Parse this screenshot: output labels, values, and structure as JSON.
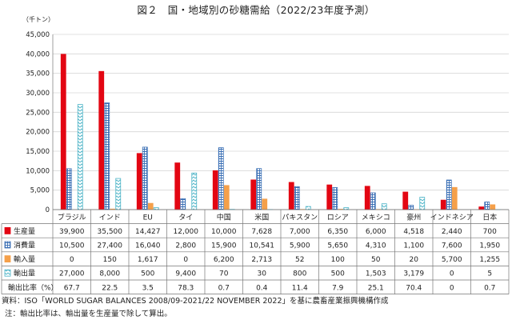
{
  "title": "図２　国・地域別の砂糖需給（2022/23年度予測）",
  "unit_label": "（千トン）",
  "source": "資料：ISO「WORLD SUGAR BALANCES 2008/09-2021/22 NOVEMBER 2022」を基に農畜産業振興機構作成",
  "note": "注：輸出比率は、輸出量を生産量で除して算出。",
  "colors": {
    "production": "#e30613",
    "consumption": "#3a6fb5",
    "import": "#f5a04a",
    "export": "#4cb3c7"
  },
  "chart_data": {
    "type": "bar",
    "title": "図２　国・地域別の砂糖需給（2022/23年度予測）",
    "ylabel": "（千トン）",
    "ylim": [
      0,
      45000
    ],
    "yticks": [
      "0",
      "5,000",
      "10,000",
      "15,000",
      "20,000",
      "25,000",
      "30,000",
      "35,000",
      "40,000",
      "45,000"
    ],
    "grid": true,
    "legend": "table-left",
    "categories": [
      "ブラジル",
      "インド",
      "EU",
      "タイ",
      "中国",
      "米国",
      "パキスタン",
      "ロシア",
      "メキシコ",
      "豪州",
      "インドネシア",
      "日本"
    ],
    "series": [
      {
        "name": "生産量",
        "values": [
          39900,
          35500,
          14427,
          12000,
          10000,
          7628,
          7000,
          6350,
          6000,
          4518,
          2440,
          700
        ]
      },
      {
        "name": "消費量",
        "values": [
          10500,
          27400,
          16040,
          2800,
          15900,
          10541,
          5900,
          5650,
          4310,
          1100,
          7600,
          1950
        ]
      },
      {
        "name": "輸入量",
        "values": [
          0,
          150,
          1617,
          0,
          6200,
          2713,
          52,
          100,
          50,
          20,
          5700,
          1255
        ]
      },
      {
        "name": "輸出量",
        "values": [
          27000,
          8000,
          500,
          9400,
          70,
          30,
          800,
          500,
          1503,
          3179,
          0,
          5
        ]
      }
    ],
    "table": {
      "rows": [
        {
          "label": "生産量",
          "cells": [
            "39,900",
            "35,500",
            "14,427",
            "12,000",
            "10,000",
            "7,628",
            "7,000",
            "6,350",
            "6,000",
            "4,518",
            "2,440",
            "700"
          ]
        },
        {
          "label": "消費量",
          "cells": [
            "10,500",
            "27,400",
            "16,040",
            "2,800",
            "15,900",
            "10,541",
            "5,900",
            "5,650",
            "4,310",
            "1,100",
            "7,600",
            "1,950"
          ]
        },
        {
          "label": "輸入量",
          "cells": [
            "0",
            "150",
            "1,617",
            "0",
            "6,200",
            "2,713",
            "52",
            "100",
            "50",
            "20",
            "5,700",
            "1,255"
          ]
        },
        {
          "label": "輸出量",
          "cells": [
            "27,000",
            "8,000",
            "500",
            "9,400",
            "70",
            "30",
            "800",
            "500",
            "1,503",
            "3,179",
            "0",
            "5"
          ]
        },
        {
          "label": "輸出比率（%）",
          "cells": [
            "67.7",
            "22.5",
            "3.5",
            "78.3",
            "0.7",
            "0.4",
            "11.4",
            "7.9",
            "25.1",
            "70.4",
            "0",
            "0.7"
          ]
        }
      ]
    }
  }
}
